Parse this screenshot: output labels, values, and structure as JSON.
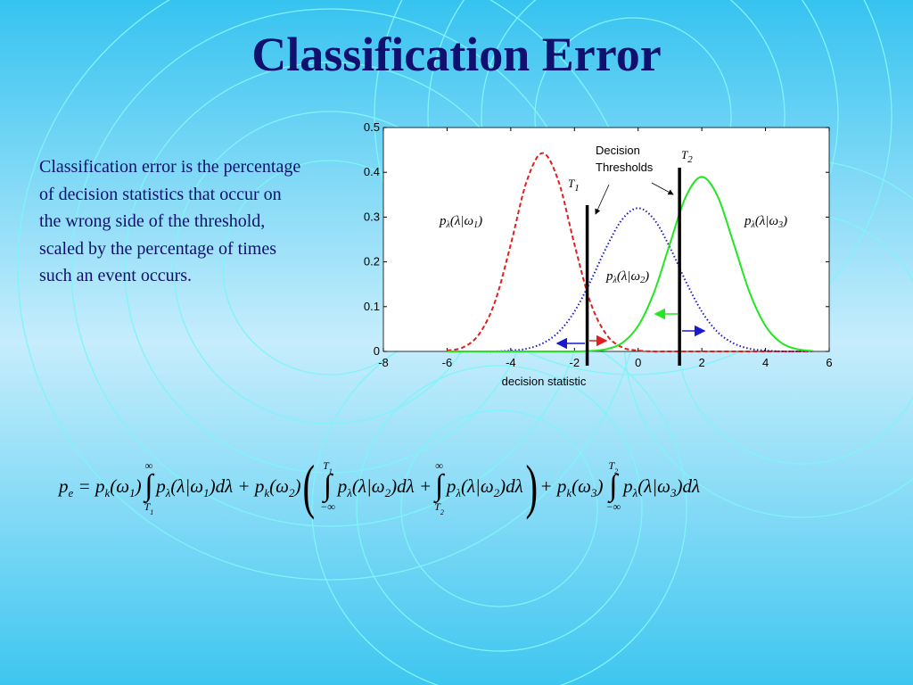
{
  "title": "Classification Error",
  "body_text": "Classification error is the percentage of decision statistics that occur on the wrong side of the threshold, scaled by the percentage of times such an event occurs.",
  "chart_data": {
    "type": "line",
    "x": [
      -6,
      -5.5,
      -5,
      -4.5,
      -4,
      -3.5,
      -3,
      -2.5,
      -2,
      -1.5,
      -1,
      -0.5,
      0,
      0.5,
      1,
      1.5,
      2,
      2.5,
      3,
      3.5,
      4,
      4.5,
      5,
      5.5
    ],
    "series": [
      {
        "color": "#e02020",
        "dash": "5,3",
        "label": {
          "p": "p",
          "sub": "λ",
          "arg": "(λ|ω",
          "argsub": "1",
          "close": ")"
        },
        "values": [
          0.002,
          0.009,
          0.038,
          0.11,
          0.239,
          0.38,
          0.443,
          0.38,
          0.239,
          0.11,
          0.038,
          0.009,
          0.002,
          0,
          0,
          0,
          0,
          0,
          0,
          0,
          0,
          0,
          0,
          0
        ]
      },
      {
        "color": "#1a1acc",
        "dash": "1.5,2.5",
        "label": {
          "p": "p",
          "sub": "λ",
          "arg": "(λ|ω",
          "argsub": "2",
          "close": ")"
        },
        "values": [
          0,
          0,
          0,
          0,
          0.002,
          0.006,
          0.018,
          0.043,
          0.089,
          0.156,
          0.232,
          0.295,
          0.32,
          0.295,
          0.232,
          0.156,
          0.089,
          0.043,
          0.018,
          0.006,
          0.002,
          0,
          0,
          0
        ]
      },
      {
        "color": "#22e622",
        "dash": "none",
        "label": {
          "p": "p",
          "sub": "λ",
          "arg": "(λ|ω",
          "argsub": "3",
          "close": ")"
        },
        "values": [
          0,
          0,
          0,
          0,
          0,
          0,
          0,
          0,
          0,
          0.001,
          0.005,
          0.019,
          0.057,
          0.132,
          0.241,
          0.346,
          0.39,
          0.346,
          0.241,
          0.132,
          0.057,
          0.019,
          0.005,
          0.001
        ]
      }
    ],
    "xlim": [
      -8,
      6
    ],
    "xticks": [
      -8,
      -6,
      -4,
      -2,
      0,
      2,
      4,
      6
    ],
    "ylim": [
      0,
      0.5
    ],
    "yticks": [
      0,
      0.1,
      0.2,
      0.3,
      0.4,
      0.5
    ],
    "xlabel": "decision statistic",
    "thresholds": [
      {
        "x": -1.6,
        "label": "T",
        "sub": "1"
      },
      {
        "x": 1.3,
        "label": "T",
        "sub": "2"
      }
    ],
    "annotation": [
      "Decision",
      "Thresholds"
    ]
  },
  "equation": [
    {
      "text": "p",
      "sub": "e"
    },
    {
      "text": " = p",
      "sub": "k"
    },
    {
      "text": "(ω",
      "sub": "1"
    },
    {
      "text": ")"
    },
    {
      "upper": "∞",
      "integral": "∫",
      "lower": "T",
      "lower_sub": "1"
    },
    {
      "text": "p",
      "sub": "λ"
    },
    {
      "text": "(λ|ω",
      "sub": "1"
    },
    {
      "text": ")dλ + p",
      "sub": "k"
    },
    {
      "text": "(ω",
      "sub": "2"
    },
    {
      "text": ")"
    },
    {
      "paren": "("
    },
    {
      "upper": "T",
      "upper_sub": "1",
      "integral": "∫",
      "lower": "−∞"
    },
    {
      "text": "p",
      "sub": "λ"
    },
    {
      "text": "(λ|ω",
      "sub": "2"
    },
    {
      "text": ")dλ +"
    },
    {
      "upper": "∞",
      "integral": "∫",
      "lower": "T",
      "lower_sub": "2"
    },
    {
      "text": "p",
      "sub": "λ"
    },
    {
      "text": "(λ|ω",
      "sub": "2"
    },
    {
      "text": ")dλ"
    },
    {
      "paren": ")"
    },
    {
      "text": "+ p",
      "sub": "k"
    },
    {
      "text": "(ω",
      "sub": "3"
    },
    {
      "text": ")"
    },
    {
      "upper": "T",
      "upper_sub": "2",
      "integral": "∫",
      "lower": "−∞"
    },
    {
      "text": "p",
      "sub": "λ"
    },
    {
      "text": "(λ|ω",
      "sub": "3"
    },
    {
      "text": ")dλ"
    }
  ]
}
